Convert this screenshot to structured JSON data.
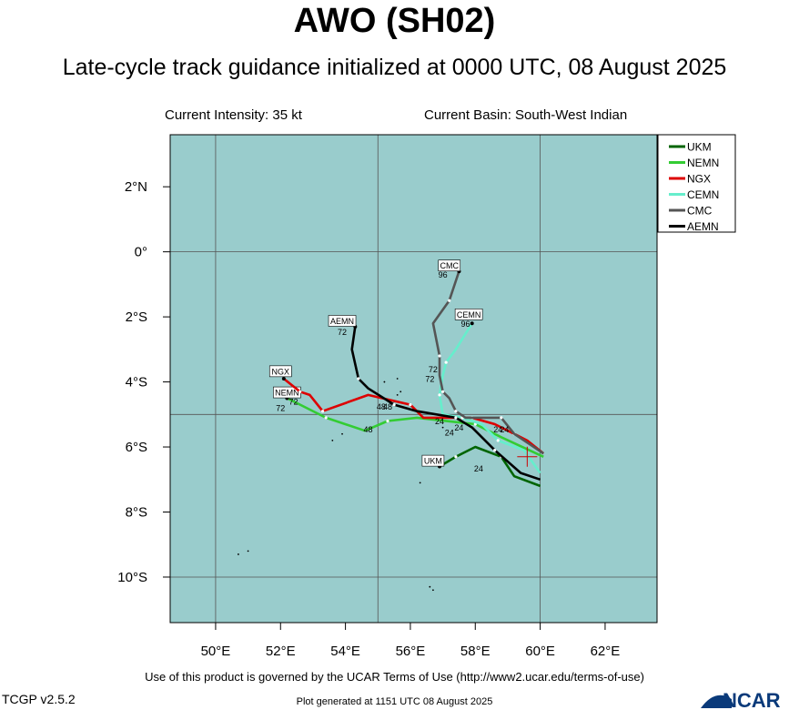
{
  "title": "AWO (SH02)",
  "subtitle": "Late-cycle track guidance initialized at 0000 UTC, 08 August 2025",
  "current_intensity": "Current Intensity: 35 kt",
  "current_basin": "Current Basin: South-West Indian",
  "footer": "Use of this product is governed by the UCAR Terms of Use (http://www2.ucar.edu/terms-of-use)",
  "version": "TCGP v2.5.2",
  "generated": "Plot generated at 1151 UTC   08 August 2025",
  "logo_text": "NCAR",
  "ocean_color": "#99cccc",
  "x_ticks": [
    {
      "lon": 50,
      "label": "50°E"
    },
    {
      "lon": 52,
      "label": "52°E"
    },
    {
      "lon": 54,
      "label": "54°E"
    },
    {
      "lon": 56,
      "label": "56°E"
    },
    {
      "lon": 58,
      "label": "58°E"
    },
    {
      "lon": 60,
      "label": "60°E"
    },
    {
      "lon": 62,
      "label": "62°E"
    }
  ],
  "y_ticks": [
    {
      "lat": 2,
      "label": "2°N"
    },
    {
      "lat": 0,
      "label": "0°"
    },
    {
      "lat": -2,
      "label": "2°S"
    },
    {
      "lat": -4,
      "label": "4°S"
    },
    {
      "lat": -6,
      "label": "6°S"
    },
    {
      "lat": -8,
      "label": "8°S"
    },
    {
      "lat": -10,
      "label": "10°S"
    }
  ],
  "gridlines": {
    "lon": [
      50,
      55,
      60
    ],
    "lat": [
      0,
      -5,
      -10
    ]
  },
  "chart_data": {
    "type": "map-tracks",
    "lon_range": [
      48.6,
      63.6
    ],
    "lat_range": [
      -11.4,
      3.6
    ],
    "current_position": {
      "lon": 59.6,
      "lat": -6.3
    },
    "tracks": [
      {
        "name": "UKM",
        "color": "#006400",
        "points": [
          [
            60.0,
            -7.2
          ],
          [
            59.2,
            -6.9
          ],
          [
            58.8,
            -6.3
          ],
          [
            58.0,
            -6.0
          ],
          [
            57.4,
            -6.3
          ],
          [
            56.9,
            -6.6
          ]
        ],
        "labels": [
          {
            "lon": 58.1,
            "lat": -6.75,
            "text": "24"
          }
        ],
        "end_box": {
          "lon": 56.7,
          "lat": -6.45,
          "text": "UKM"
        }
      },
      {
        "name": "NEMN",
        "color": "#33cc33",
        "points": [
          [
            60.1,
            -6.3
          ],
          [
            58.8,
            -5.7
          ],
          [
            58.0,
            -5.3
          ],
          [
            56.2,
            -5.1
          ],
          [
            55.3,
            -5.2
          ],
          [
            54.6,
            -5.5
          ],
          [
            53.4,
            -5.1
          ],
          [
            52.2,
            -4.5
          ]
        ],
        "labels": [
          {
            "lon": 57.2,
            "lat": -5.65,
            "text": "24"
          },
          {
            "lon": 54.7,
            "lat": -5.55,
            "text": "48"
          },
          {
            "lon": 52.0,
            "lat": -4.9,
            "text": "72"
          }
        ],
        "end_box": {
          "lon": 52.2,
          "lat": -4.35,
          "text": "NEMN"
        }
      },
      {
        "name": "NGX",
        "color": "#dd0000",
        "points": [
          [
            60.1,
            -6.2
          ],
          [
            59.6,
            -5.8
          ],
          [
            59.2,
            -5.6
          ],
          [
            58.6,
            -5.3
          ],
          [
            57.9,
            -5.1
          ],
          [
            56.4,
            -5.1
          ],
          [
            56.0,
            -4.7
          ],
          [
            54.7,
            -4.4
          ],
          [
            53.3,
            -4.9
          ],
          [
            52.9,
            -4.4
          ],
          [
            52.6,
            -4.3
          ],
          [
            52.1,
            -3.9
          ]
        ],
        "labels": [
          {
            "lon": 56.9,
            "lat": -5.3,
            "text": "24"
          },
          {
            "lon": 55.3,
            "lat": -4.85,
            "text": "48"
          },
          {
            "lon": 52.4,
            "lat": -4.7,
            "text": "72"
          }
        ],
        "end_box": {
          "lon": 52.0,
          "lat": -3.7,
          "text": "NGX"
        }
      },
      {
        "name": "CEMN",
        "color": "#66eecc",
        "points": [
          [
            60.0,
            -6.8
          ],
          [
            59.5,
            -6.1
          ],
          [
            58.7,
            -5.8
          ],
          [
            58.2,
            -5.3
          ],
          [
            57.6,
            -5.1
          ],
          [
            57.0,
            -5.0
          ],
          [
            56.9,
            -4.4
          ],
          [
            57.0,
            -3.8
          ],
          [
            57.1,
            -3.4
          ],
          [
            57.4,
            -3.0
          ],
          [
            57.9,
            -2.2
          ]
        ],
        "labels": [
          {
            "lon": 58.7,
            "lat": -5.55,
            "text": "24"
          },
          {
            "lon": 56.6,
            "lat": -4.0,
            "text": "72"
          },
          {
            "lon": 57.7,
            "lat": -2.3,
            "text": "96"
          }
        ],
        "end_box": {
          "lon": 57.8,
          "lat": -1.95,
          "text": "CEMN"
        }
      },
      {
        "name": "CMC",
        "color": "#555555",
        "points": [
          [
            60.1,
            -6.2
          ],
          [
            59.2,
            -5.6
          ],
          [
            58.8,
            -5.1
          ],
          [
            57.7,
            -5.1
          ],
          [
            57.4,
            -4.9
          ],
          [
            57.2,
            -4.5
          ],
          [
            57.0,
            -4.3
          ],
          [
            56.9,
            -3.8
          ],
          [
            56.9,
            -3.2
          ],
          [
            56.7,
            -2.2
          ],
          [
            57.2,
            -1.5
          ],
          [
            57.5,
            -0.6
          ]
        ],
        "labels": [
          {
            "lon": 58.9,
            "lat": -5.55,
            "text": "24"
          },
          {
            "lon": 56.7,
            "lat": -3.7,
            "text": "72"
          },
          {
            "lon": 57.0,
            "lat": -0.8,
            "text": "96"
          }
        ],
        "end_box": {
          "lon": 57.2,
          "lat": -0.45,
          "text": "CMC"
        }
      },
      {
        "name": "AEMN",
        "color": "#000000",
        "points": [
          [
            60.0,
            -7.0
          ],
          [
            59.4,
            -6.8
          ],
          [
            58.6,
            -6.1
          ],
          [
            57.9,
            -5.4
          ],
          [
            57.4,
            -5.1
          ],
          [
            56.2,
            -4.9
          ],
          [
            55.5,
            -4.7
          ],
          [
            54.7,
            -4.2
          ],
          [
            54.4,
            -3.9
          ],
          [
            54.2,
            -3.0
          ],
          [
            54.3,
            -2.3
          ]
        ],
        "labels": [
          {
            "lon": 57.5,
            "lat": -5.5,
            "text": "24"
          },
          {
            "lon": 55.1,
            "lat": -4.85,
            "text": "48"
          },
          {
            "lon": 53.9,
            "lat": -2.55,
            "text": "72"
          }
        ],
        "end_box": {
          "lon": 53.9,
          "lat": -2.15,
          "text": "AEMN"
        }
      }
    ],
    "islands": [
      [
        55.5,
        -4.6
      ],
      [
        55.6,
        -4.4
      ],
      [
        55.7,
        -4.3
      ],
      [
        55.2,
        -4.0
      ],
      [
        55.6,
        -3.9
      ],
      [
        53.9,
        -5.6
      ],
      [
        53.6,
        -5.8
      ],
      [
        56.3,
        -7.1
      ],
      [
        56.6,
        -10.3
      ],
      [
        56.7,
        -10.4
      ],
      [
        51.0,
        -9.2
      ],
      [
        50.7,
        -9.3
      ],
      [
        57.0,
        -5.4
      ]
    ]
  }
}
